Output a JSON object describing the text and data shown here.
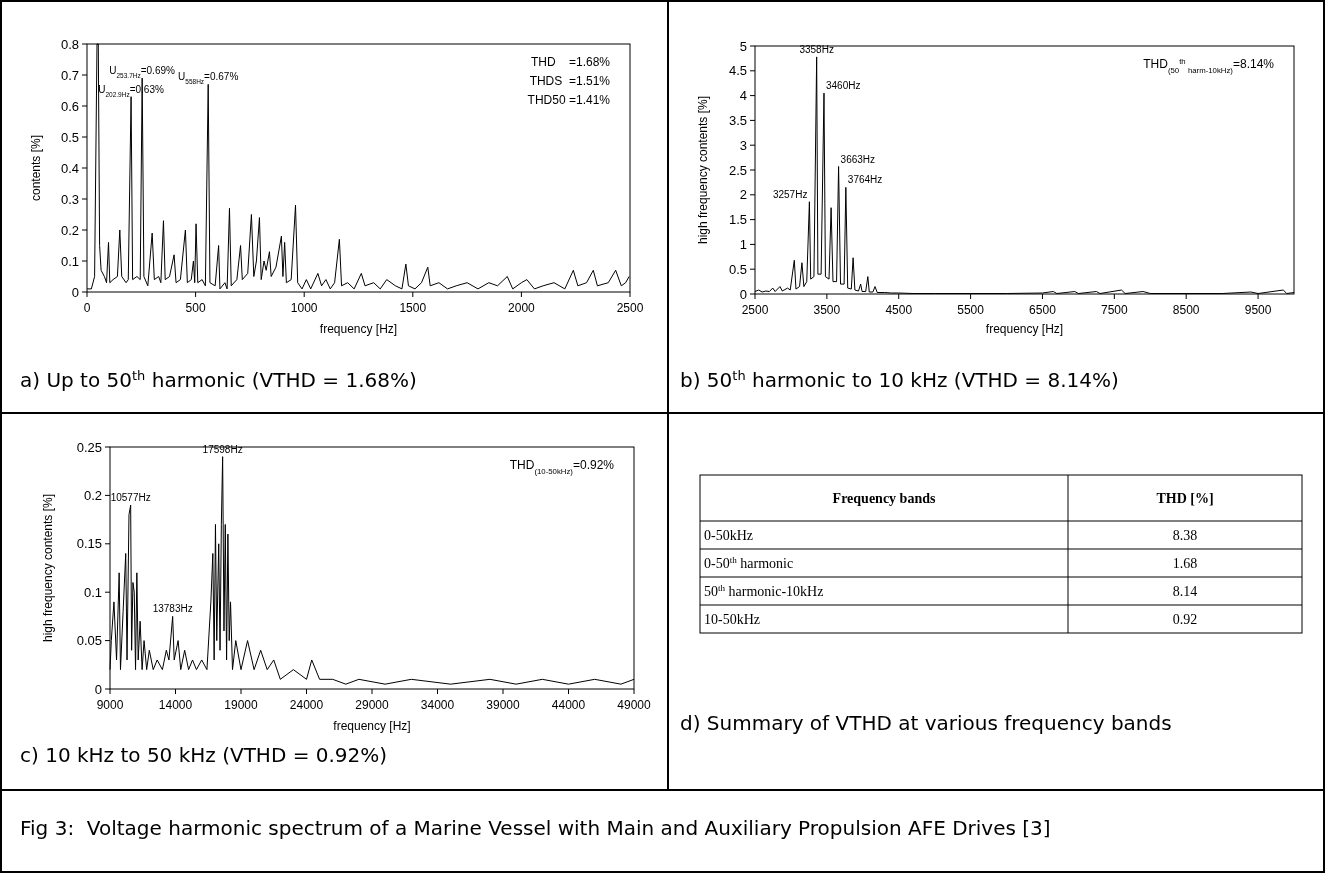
{
  "chart_data": [
    {
      "type": "line",
      "title": "a) Up to 50$^{th}$ harmonic (VTHD = 1.68%)",
      "xlabel": "frequency [Hz]",
      "ylabel": "contents [%]",
      "color": "#000000",
      "xlim": [
        0,
        2500
      ],
      "xticks": [
        0,
        500,
        1000,
        1500,
        2000,
        2500
      ],
      "ylim": [
        0,
        0.8
      ],
      "yticks": [
        0,
        0.1,
        0.2,
        0.3,
        0.4,
        0.5,
        0.6,
        0.7,
        0.8
      ],
      "x": [
        0,
        20,
        35,
        46,
        52,
        58,
        65,
        80,
        90,
        99,
        105,
        120,
        140,
        151,
        160,
        180,
        190,
        203,
        210,
        230,
        245,
        254,
        262,
        280,
        300,
        310,
        330,
        340,
        352,
        360,
        380,
        401,
        410,
        430,
        453,
        462,
        480,
        490,
        496,
        502,
        510,
        530,
        545,
        558,
        566,
        590,
        606,
        612,
        635,
        645,
        656,
        664,
        690,
        707,
        715,
        740,
        757,
        768,
        780,
        794,
        802,
        815,
        825,
        840,
        848,
        870,
        895,
        902,
        910,
        918,
        940,
        960,
        970,
        990,
        1010,
        1030,
        1063,
        1080,
        1100,
        1120,
        1140,
        1162,
        1172,
        1200,
        1230,
        1263,
        1280,
        1320,
        1350,
        1380,
        1420,
        1450,
        1468,
        1480,
        1510,
        1540,
        1569,
        1580,
        1620,
        1660,
        1700,
        1750,
        1800,
        1850,
        1890,
        1935,
        1960,
        2000,
        2025,
        2060,
        2100,
        2150,
        2200,
        2239,
        2260,
        2300,
        2331,
        2350,
        2400,
        2434,
        2460,
        2480,
        2496
      ],
      "values": [
        0.01,
        0.01,
        0.05,
        0.8,
        0.8,
        0.15,
        0.07,
        0.05,
        0.03,
        0.16,
        0.03,
        0.04,
        0.05,
        0.2,
        0.05,
        0.03,
        0.04,
        0.63,
        0.04,
        0.05,
        0.04,
        0.69,
        0.05,
        0.02,
        0.19,
        0.04,
        0.05,
        0.03,
        0.23,
        0.04,
        0.05,
        0.12,
        0.03,
        0.04,
        0.2,
        0.03,
        0.04,
        0.1,
        0.03,
        0.22,
        0.03,
        0.04,
        0.02,
        0.67,
        0.03,
        0.02,
        0.15,
        0.01,
        0.03,
        0.01,
        0.27,
        0.02,
        0.04,
        0.15,
        0.04,
        0.06,
        0.25,
        0.05,
        0.1,
        0.24,
        0.04,
        0.1,
        0.07,
        0.13,
        0.05,
        0.08,
        0.18,
        0.05,
        0.16,
        0.03,
        0.04,
        0.28,
        0.03,
        0.01,
        0.04,
        0.01,
        0.06,
        0.02,
        0.04,
        0.01,
        0.03,
        0.17,
        0.02,
        0.03,
        0.01,
        0.06,
        0.02,
        0.03,
        0.01,
        0.04,
        0.02,
        0.01,
        0.09,
        0.02,
        0.01,
        0.03,
        0.08,
        0.02,
        0.03,
        0.01,
        0.02,
        0.03,
        0.01,
        0.03,
        0.02,
        0.05,
        0.01,
        0.03,
        0.04,
        0.01,
        0.02,
        0.03,
        0.01,
        0.07,
        0.02,
        0.03,
        0.07,
        0.02,
        0.03,
        0.07,
        0.02,
        0.03,
        0.05
      ],
      "annotations": [
        {
          "text": "U$_{253.7Hz}$=0.69%",
          "x": 253.7,
          "y": 0.69
        },
        {
          "text": "U$_{202.9Hz}$=0.63%",
          "x": 202.9,
          "y": 0.63
        },
        {
          "text": "U$_{558Hz}$=0.67%",
          "x": 558,
          "y": 0.67
        },
        "THD    =1.68%",
        "THDS  =1.51%",
        "THD50 =1.41%"
      ]
    },
    {
      "type": "line",
      "title": "b) 50$^{th}$ harmonic to 10 kHz (VTHD = 8.14%)",
      "xlabel": "frequency [Hz]",
      "ylabel": "high frequency contents [%]",
      "color": "#000000",
      "xlim": [
        2500,
        10000
      ],
      "xticks": [
        2500,
        3500,
        4500,
        5500,
        6500,
        7500,
        8500,
        9500
      ],
      "ylim": [
        0,
        5
      ],
      "yticks": [
        0,
        0.5,
        1,
        1.5,
        2,
        2.5,
        3,
        3.5,
        4,
        4.5,
        5
      ],
      "x": [
        2500,
        2550,
        2600,
        2650,
        2700,
        2747,
        2780,
        2847,
        2880,
        2953,
        2990,
        3047,
        3070,
        3120,
        3153,
        3180,
        3220,
        3257,
        3275,
        3320,
        3358,
        3375,
        3420,
        3460,
        3480,
        3530,
        3559,
        3585,
        3635,
        3663,
        3690,
        3740,
        3764,
        3790,
        3840,
        3865,
        3890,
        3940,
        3970,
        3990,
        4040,
        4070,
        4090,
        4140,
        4170,
        4200,
        4300,
        4400,
        4500,
        4700,
        5000,
        5500,
        6000,
        6500,
        6650,
        6700,
        6950,
        7000,
        7250,
        7300,
        7600,
        7650,
        7900,
        8000,
        8500,
        9000,
        9400,
        9500,
        9850,
        9900,
        10000
      ],
      "values": [
        0.05,
        0.08,
        0.04,
        0.06,
        0.05,
        0.12,
        0.05,
        0.15,
        0.06,
        0.12,
        0.08,
        0.68,
        0.1,
        0.15,
        0.63,
        0.15,
        0.25,
        1.86,
        0.3,
        0.35,
        4.78,
        0.4,
        0.4,
        4.05,
        0.35,
        0.3,
        1.74,
        0.25,
        0.25,
        2.57,
        0.2,
        0.2,
        2.15,
        0.12,
        0.1,
        0.73,
        0.08,
        0.06,
        0.2,
        0.05,
        0.05,
        0.35,
        0.04,
        0.04,
        0.15,
        0.03,
        0.03,
        0.02,
        0.02,
        0.01,
        0.01,
        0.01,
        0.01,
        0.02,
        0.05,
        0.01,
        0.05,
        0.01,
        0.05,
        0.01,
        0.08,
        0.01,
        0.05,
        0.01,
        0.01,
        0.01,
        0.04,
        0.01,
        0.08,
        0.01,
        0.03
      ],
      "annotations": [
        {
          "text": "3358Hz",
          "x": 3358,
          "y": 4.78
        },
        {
          "text": "3460Hz",
          "x": 3460,
          "y": 4.05
        },
        {
          "text": "3663Hz",
          "x": 3663,
          "y": 2.57
        },
        {
          "text": "3764Hz",
          "x": 3764,
          "y": 2.15
        },
        {
          "text": "3257Hz",
          "x": 3257,
          "y": 1.86
        },
        "THD$_{(50}$$^{th}$$_{ harm-10kHz)}$=8.14%"
      ]
    },
    {
      "type": "line",
      "title": "c) 10 kHz to 50 kHz (VTHD = 0.92%)",
      "xlabel": "frequency [Hz]",
      "ylabel": "high frequency contents [%]",
      "color": "#000000",
      "xlim": [
        9000,
        49000
      ],
      "xticks": [
        9000,
        14000,
        19000,
        24000,
        29000,
        34000,
        39000,
        44000,
        49000
      ],
      "ylim": [
        0,
        0.25
      ],
      "yticks": [
        0,
        0.05,
        0.1,
        0.15,
        0.2,
        0.25
      ],
      "x": [
        9000,
        9100,
        9300,
        9500,
        9700,
        9800,
        10000,
        10200,
        10300,
        10450,
        10577,
        10650,
        10750,
        10850,
        10950,
        11050,
        11150,
        11300,
        11450,
        11600,
        11800,
        12000,
        12300,
        12600,
        13000,
        13300,
        13500,
        13783,
        13900,
        14200,
        14400,
        14700,
        15000,
        15300,
        15600,
        16000,
        16400,
        16700,
        16850,
        16950,
        17050,
        17150,
        17300,
        17400,
        17500,
        17598,
        17700,
        17800,
        17900,
        18000,
        18100,
        18200,
        18350,
        18600,
        19000,
        19500,
        20000,
        20500,
        21000,
        21500,
        22000,
        23000,
        24000,
        24400,
        25000,
        26000,
        27000,
        28000,
        30000,
        32000,
        35000,
        38000,
        40000,
        42000,
        44000,
        46000,
        48000,
        49000
      ],
      "values": [
        0.02,
        0.05,
        0.09,
        0.03,
        0.12,
        0.02,
        0.08,
        0.14,
        0.03,
        0.18,
        0.19,
        0.04,
        0.11,
        0.1,
        0.02,
        0.12,
        0.03,
        0.07,
        0.02,
        0.05,
        0.02,
        0.04,
        0.02,
        0.03,
        0.02,
        0.04,
        0.03,
        0.075,
        0.03,
        0.05,
        0.02,
        0.04,
        0.02,
        0.03,
        0.02,
        0.03,
        0.02,
        0.09,
        0.14,
        0.03,
        0.17,
        0.05,
        0.15,
        0.04,
        0.17,
        0.24,
        0.06,
        0.17,
        0.03,
        0.16,
        0.05,
        0.09,
        0.02,
        0.05,
        0.02,
        0.05,
        0.02,
        0.04,
        0.02,
        0.03,
        0.01,
        0.02,
        0.01,
        0.03,
        0.01,
        0.01,
        0.005,
        0.01,
        0.005,
        0.01,
        0.005,
        0.01,
        0.005,
        0.01,
        0.005,
        0.01,
        0.005,
        0.01
      ],
      "annotations": [
        {
          "text": "17598Hz",
          "x": 17598,
          "y": 0.24
        },
        {
          "text": "10577Hz",
          "x": 10577,
          "y": 0.19
        },
        {
          "text": "13783Hz",
          "x": 13783,
          "y": 0.075
        },
        "THD$_{(10-50kHz)}$=0.92%"
      ]
    },
    {
      "type": "other",
      "title": "d) Summary of VTHD at various frequency bands",
      "xlabel": "Frequency bands",
      "ylabel": "THD [%]",
      "categories": [
        "0-50kHz",
        "0-50$^{th}$ harmonic",
        "50$^{th}$ harmonic-10kHz",
        "10-50kHz"
      ],
      "values": [
        8.38,
        1.68,
        8.14,
        0.92
      ],
      "data_labels": true,
      "annotations": [
        "Fig 3:  Voltage harmonic spectrum of a Marine Vessel with Main and Auxiliary Propulsion AFE Drives [3]"
      ]
    }
  ]
}
